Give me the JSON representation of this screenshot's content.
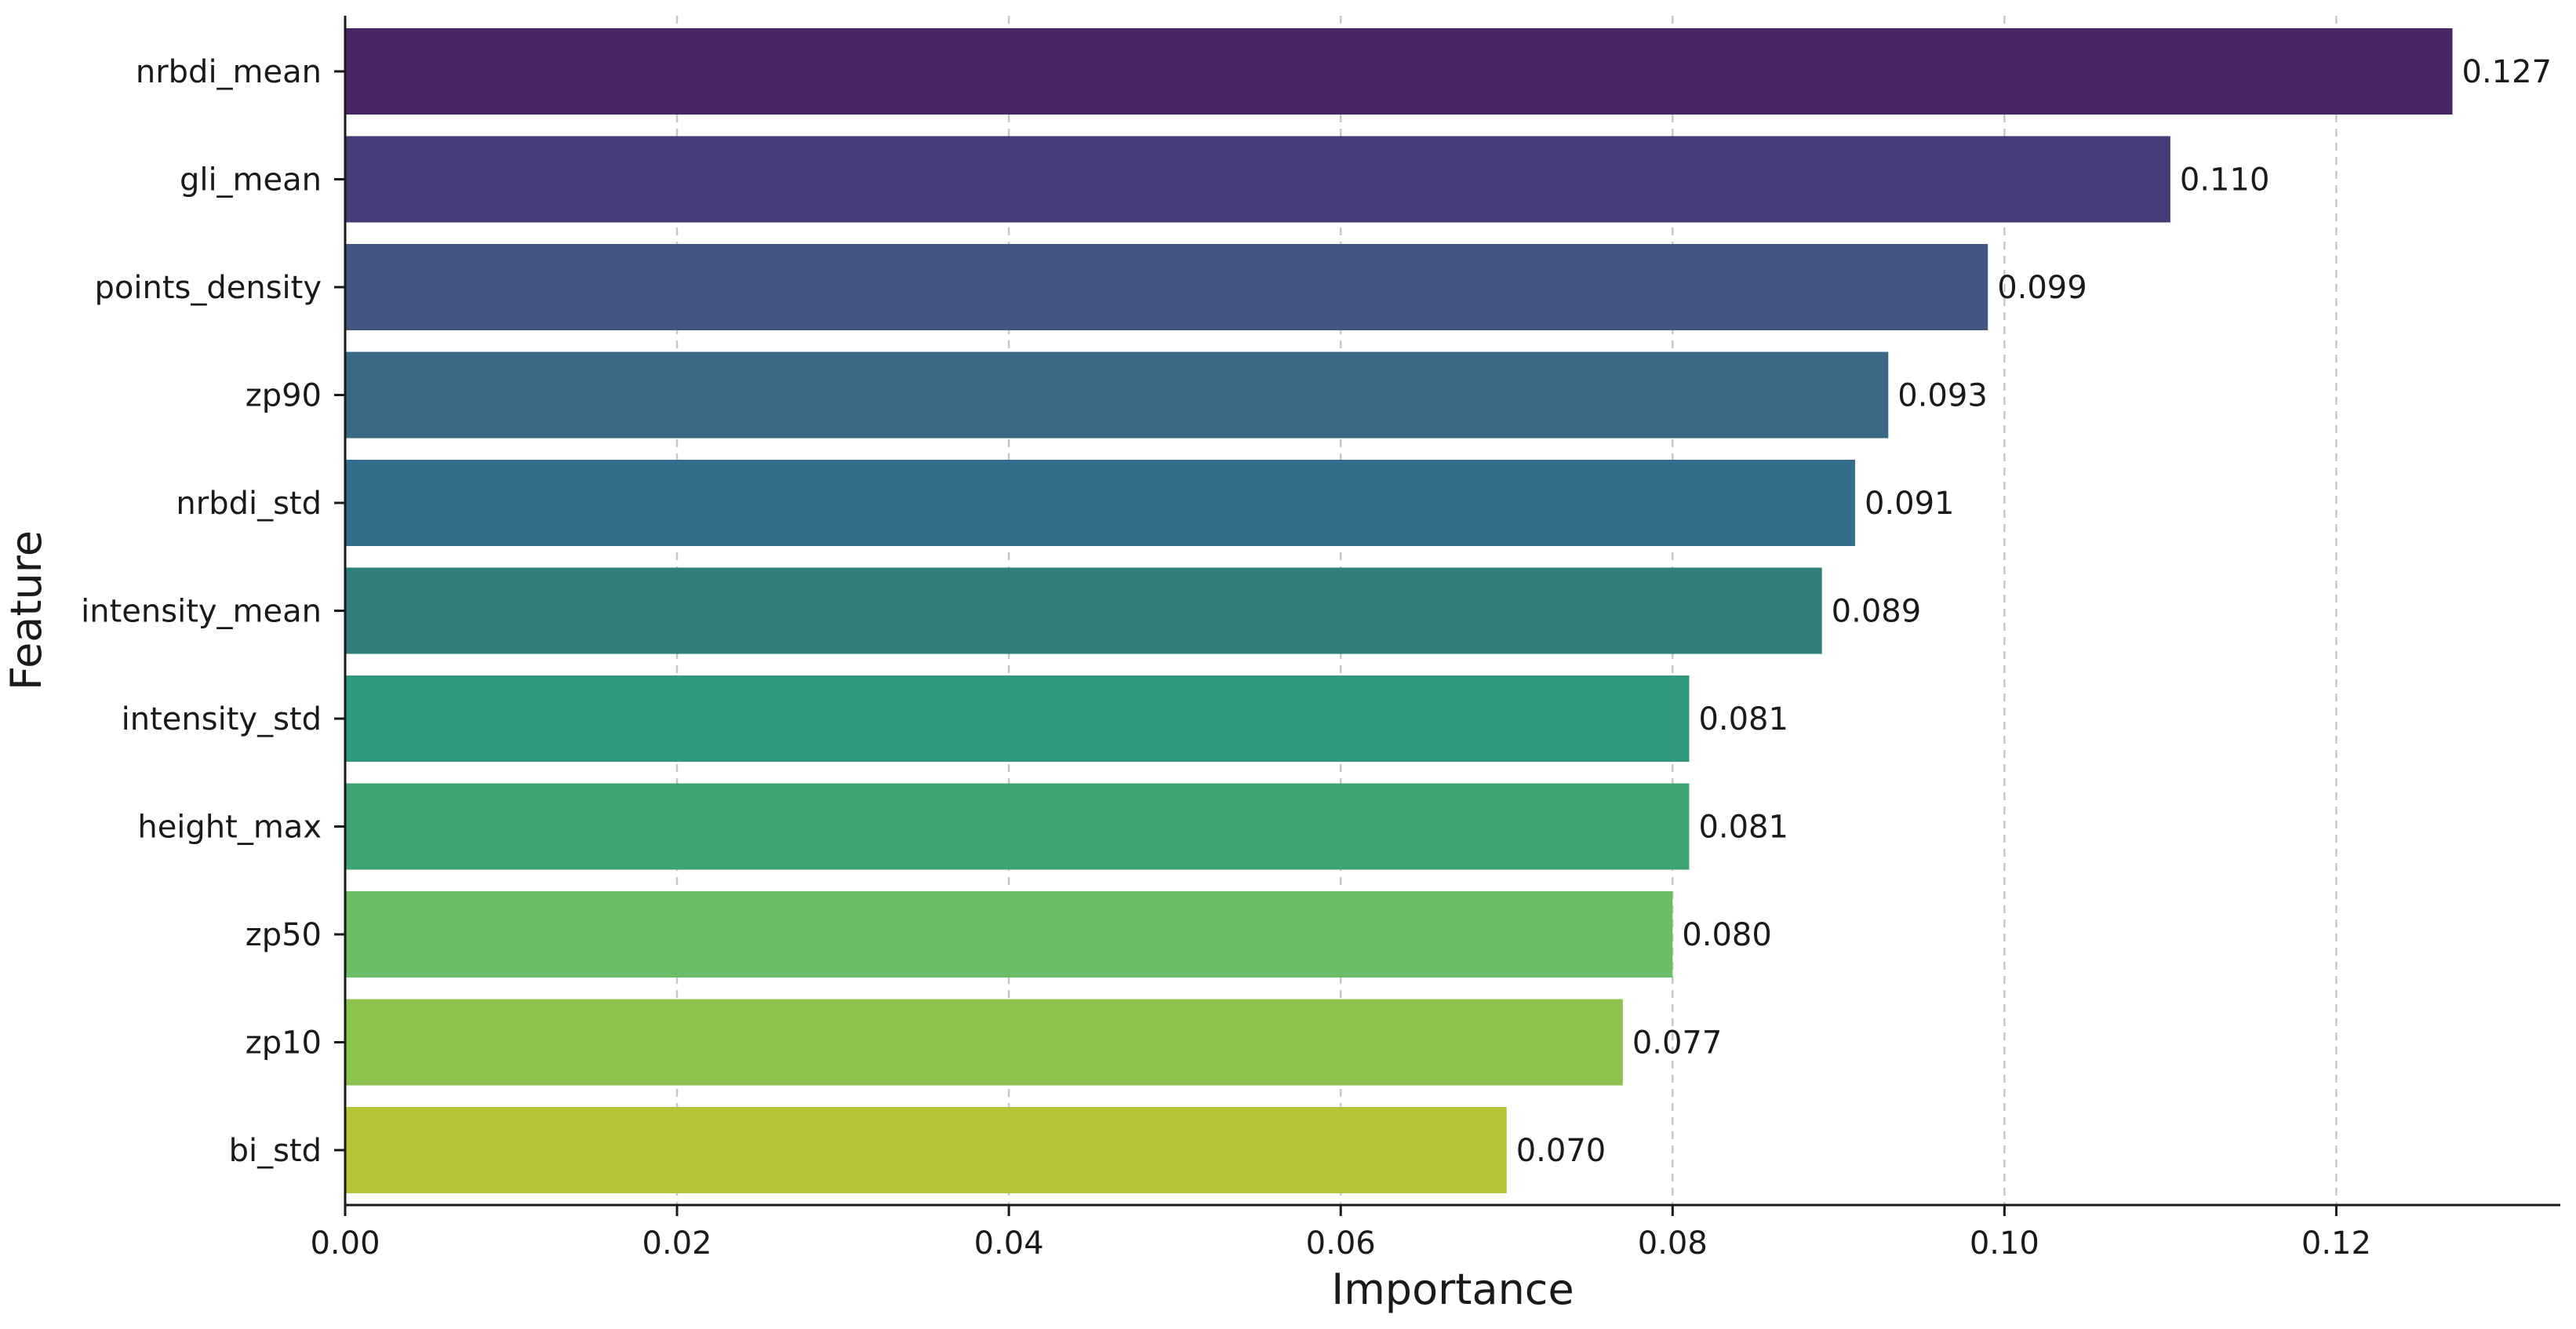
{
  "chart_data": {
    "type": "bar",
    "orientation": "horizontal",
    "title": "",
    "xlabel": "Importance",
    "ylabel": "Feature",
    "xlim": [
      0,
      0.1335
    ],
    "grid": {
      "x": true,
      "y": false,
      "style": "dashed"
    },
    "xticks": [
      0.0,
      0.02,
      0.04,
      0.06,
      0.08,
      0.1,
      0.12
    ],
    "xtick_labels": [
      "0.00",
      "0.02",
      "0.04",
      "0.06",
      "0.08",
      "0.10",
      "0.12"
    ],
    "categories": [
      "nrbdi_mean",
      "gli_mean",
      "points_density",
      "zp90",
      "nrbdi_std",
      "intensity_mean",
      "intensity_std",
      "height_max",
      "zp50",
      "zp10",
      "bi_std"
    ],
    "values": [
      0.127,
      0.11,
      0.099,
      0.093,
      0.091,
      0.089,
      0.081,
      0.081,
      0.08,
      0.077,
      0.07
    ],
    "value_labels": [
      "0.127",
      "0.110",
      "0.099",
      "0.093",
      "0.091",
      "0.089",
      "0.081",
      "0.081",
      "0.080",
      "0.077",
      "0.070"
    ],
    "colors": [
      "#482567",
      "#473c78",
      "#435580",
      "#3b6885",
      "#356e8a",
      "#2e8079",
      "#32977f",
      "#3da473",
      "#6cbd68",
      "#8dc24f",
      "#b5c535"
    ]
  }
}
